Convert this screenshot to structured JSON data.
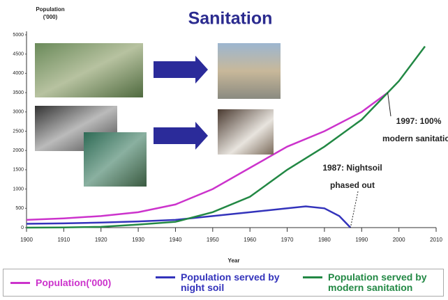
{
  "chart_data": {
    "type": "line",
    "title": "Sanitation",
    "ylabel": [
      "Population",
      "('000)"
    ],
    "xlabel": "Year",
    "xlim": [
      1900,
      2010
    ],
    "xticks": [
      1900,
      1910,
      1920,
      1930,
      1940,
      1950,
      1960,
      1970,
      1980,
      1990,
      2000,
      2010
    ],
    "ylim": [
      0,
      5000
    ],
    "yticks": [
      0,
      500,
      1000,
      1500,
      2000,
      2500,
      3000,
      3500,
      4000,
      4500,
      5000
    ],
    "series": [
      {
        "name": "Population('000)",
        "color": "#cc33cc",
        "x": [
          1900,
          1910,
          1920,
          1930,
          1940,
          1950,
          1960,
          1970,
          1980,
          1990,
          1997
        ],
        "values": [
          200,
          240,
          300,
          400,
          600,
          1000,
          1550,
          2100,
          2500,
          3000,
          3500
        ]
      },
      {
        "name": "Population served by night soil",
        "color": "#3333bb",
        "x": [
          1900,
          1910,
          1920,
          1930,
          1940,
          1950,
          1960,
          1970,
          1975,
          1980,
          1984,
          1987
        ],
        "values": [
          100,
          110,
          130,
          160,
          200,
          300,
          400,
          500,
          550,
          500,
          300,
          0
        ]
      },
      {
        "name": "Population served by modern sanitation",
        "color": "#228844",
        "x": [
          1900,
          1910,
          1920,
          1930,
          1940,
          1950,
          1960,
          1970,
          1980,
          1990,
          1997,
          2000,
          2007
        ],
        "values": [
          0,
          5,
          20,
          80,
          150,
          400,
          800,
          1500,
          2100,
          2800,
          3500,
          3800,
          4700
        ]
      }
    ],
    "annotations": [
      {
        "lines": [
          "1997: 100%",
          "modern sanitation"
        ],
        "x": 1997,
        "y": 3500
      },
      {
        "lines": [
          "1987: Nightsoil",
          "phased out"
        ],
        "x": 1987,
        "y": 0
      }
    ]
  }
}
